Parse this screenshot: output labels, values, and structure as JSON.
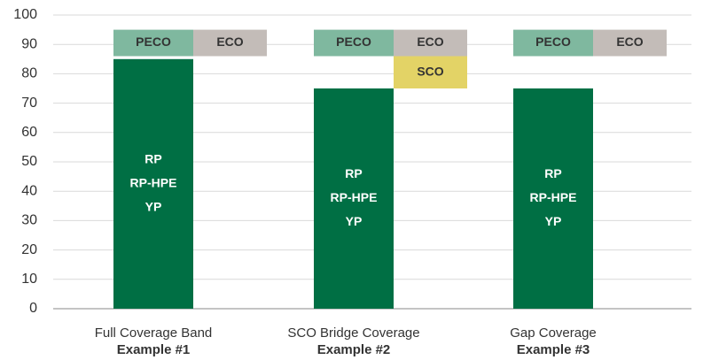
{
  "chart_data": {
    "type": "range-bar",
    "categories": [
      "Full Coverage Band",
      "SCO Bridge Coverage",
      "Gap Coverage"
    ],
    "category_subtitles": [
      "Example #1",
      "Example #2",
      "Example #3"
    ],
    "series": [
      {
        "name": [
          "RP",
          "RP-HPE",
          "YP"
        ],
        "color": "#006f44",
        "values": [
          [
            0,
            85
          ],
          [
            0,
            75
          ],
          [
            0,
            75
          ]
        ]
      },
      {
        "name": "PECO",
        "color": "#7fb89f",
        "values": [
          [
            86,
            95
          ],
          [
            86,
            95
          ],
          [
            86,
            95
          ]
        ]
      },
      {
        "name": "ECO",
        "color": "#c3bcb8",
        "values": [
          [
            86,
            95
          ],
          [
            86,
            95
          ],
          [
            86,
            95
          ]
        ]
      },
      {
        "name": "SCO",
        "color": "#e3d366",
        "values": [
          null,
          [
            75,
            86
          ],
          null
        ]
      }
    ],
    "ylim": [
      0,
      100
    ],
    "yticks": [
      0,
      10,
      20,
      30,
      40,
      50,
      60,
      70,
      80,
      90,
      100
    ],
    "grid": true
  }
}
